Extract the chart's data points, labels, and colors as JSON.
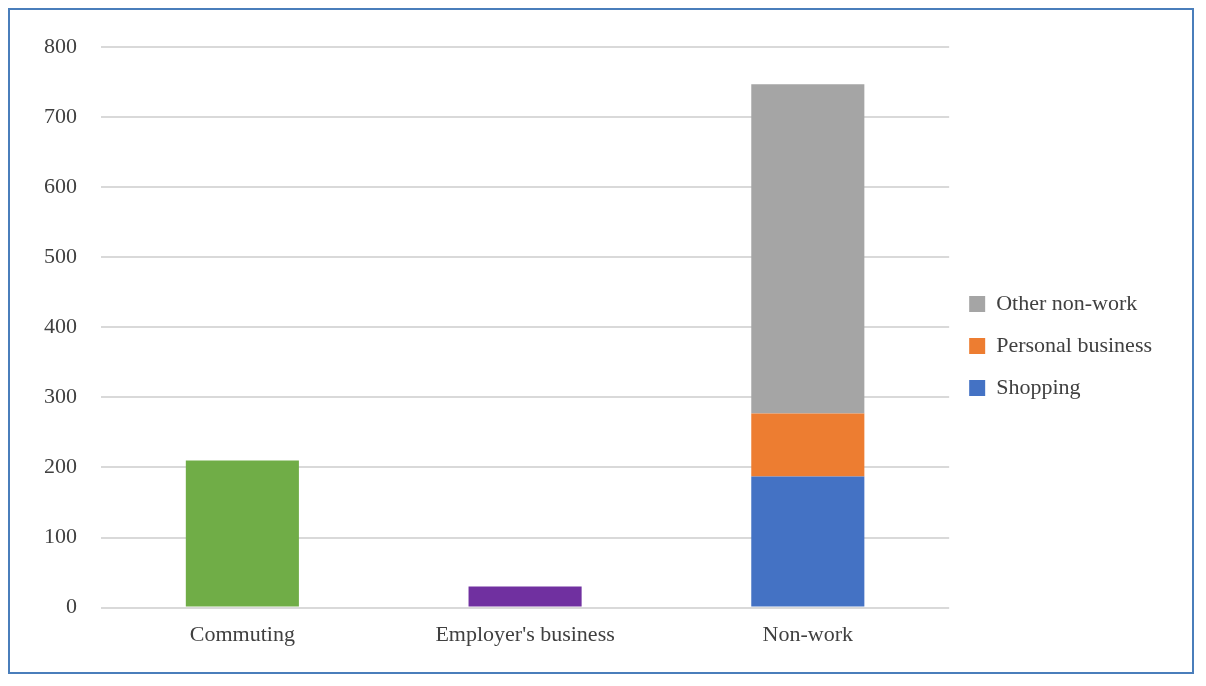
{
  "chart_data": {
    "type": "bar",
    "stacked": true,
    "categories": [
      "Commuting",
      "Employer's business",
      "Non-work"
    ],
    "series": [
      {
        "color": "#70ad47",
        "values": [
          210,
          null,
          null
        ]
      },
      {
        "color": "#7030a0",
        "values": [
          null,
          30,
          null
        ]
      },
      {
        "name": "Shopping",
        "color": "#4472c4",
        "values": [
          null,
          null,
          187
        ]
      },
      {
        "name": "Personal business",
        "color": "#ed7d31",
        "values": [
          null,
          null,
          90
        ]
      },
      {
        "name": "Other non-work",
        "color": "#a5a5a5",
        "values": [
          null,
          null,
          470
        ]
      }
    ],
    "ylim": [
      0,
      800
    ],
    "yticks": [
      0,
      100,
      200,
      300,
      400,
      500,
      600,
      700,
      800
    ],
    "grid": "y",
    "legend": "right"
  }
}
